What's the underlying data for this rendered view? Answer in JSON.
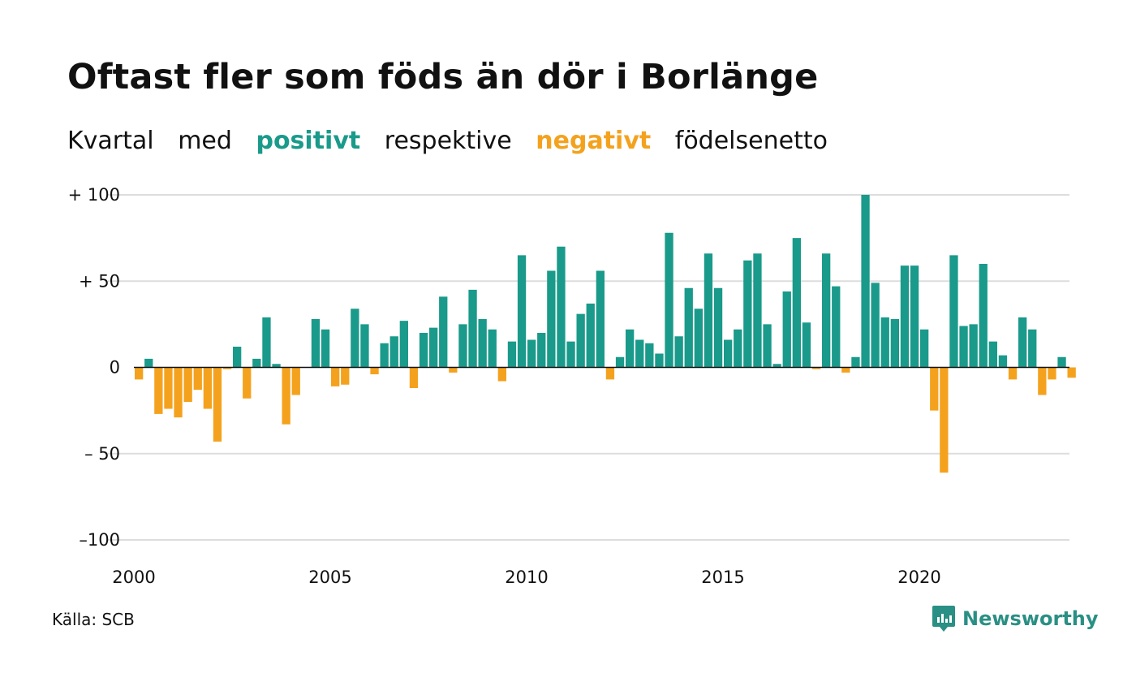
{
  "title": "Oftast fler som föds än dör i Borlänge",
  "subtitle": {
    "parts": [
      "Kvartal",
      "med",
      "positivt",
      "respektive",
      "negativt",
      "födelsenetto"
    ]
  },
  "source": "Källa: SCB",
  "brand": {
    "name": "Newsworthy",
    "icon": "newsworthy-logo-icon"
  },
  "colors": {
    "positive": "#1a9a8a",
    "negative": "#f4a21e",
    "grid": "#dddddd",
    "zero_line": "#111111"
  },
  "chart_data": {
    "type": "bar",
    "title": "Oftast fler som föds än dör i Borlänge",
    "subtitle": "Kvartal med positivt respektive negativt födelsenetto",
    "x_start": 2000,
    "x_end": 2024,
    "quarters_per_year": 4,
    "x_ticks": [
      2000,
      2005,
      2010,
      2015,
      2020
    ],
    "y_ticks": [
      100,
      50,
      0,
      -50,
      -100
    ],
    "y_tick_labels": [
      "+ 100",
      "+  50",
      "0",
      "– 50",
      "–100"
    ],
    "ylim": [
      -100,
      100
    ],
    "grid": true,
    "values": [
      -7,
      5,
      -27,
      -24,
      -29,
      -20,
      -13,
      -24,
      -43,
      -1,
      12,
      -18,
      5,
      29,
      2,
      -33,
      -16,
      0,
      28,
      22,
      -11,
      -10,
      34,
      25,
      -4,
      14,
      18,
      27,
      -12,
      20,
      23,
      41,
      -3,
      25,
      45,
      28,
      22,
      -8,
      15,
      65,
      16,
      20,
      56,
      70,
      15,
      31,
      37,
      56,
      -7,
      6,
      22,
      16,
      14,
      8,
      78,
      18,
      46,
      34,
      66,
      46,
      16,
      22,
      62,
      66,
      25,
      2,
      44,
      75,
      26,
      -1,
      66,
      47,
      -3,
      6,
      100,
      49,
      29,
      28,
      59,
      59,
      22,
      -25,
      -61,
      65,
      24,
      25,
      60,
      15,
      7,
      -7,
      29,
      22,
      -16,
      -7,
      6,
      -6
    ]
  }
}
